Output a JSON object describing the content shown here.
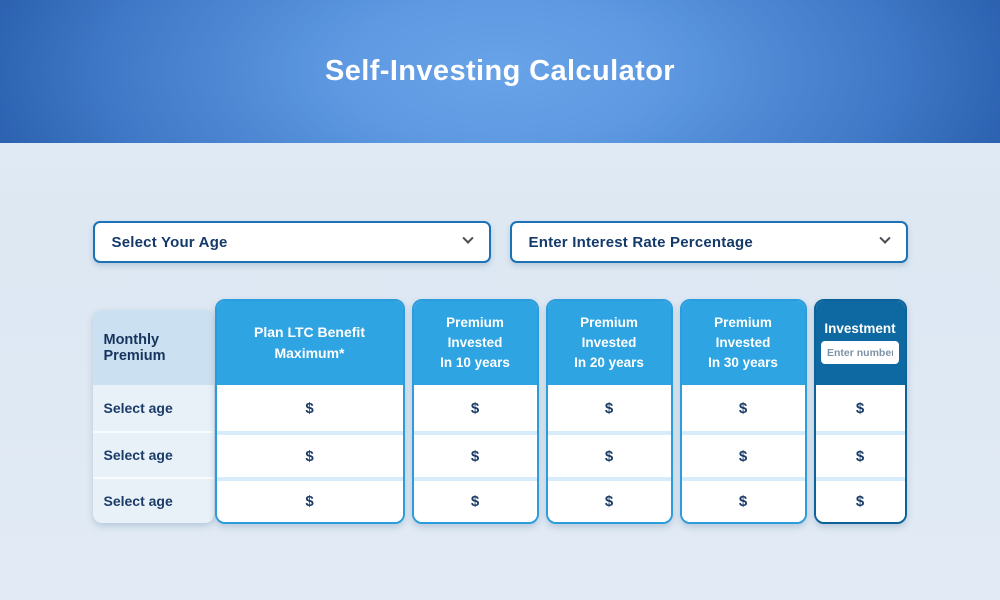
{
  "page": {
    "title": "Self-Investing Calculator"
  },
  "filters": {
    "age": {
      "label": "Select Your Age"
    },
    "rate": {
      "label": "Enter Interest Rate Percentage"
    }
  },
  "table": {
    "monthly_premium_header": "Monthly Premium",
    "columns": [
      {
        "id": "plan-ltc-benefit",
        "label": "Plan LTC Benefit Maximum*"
      },
      {
        "id": "invested-10",
        "line1": "Premium Invested",
        "line2": "In 10 years"
      },
      {
        "id": "invested-20",
        "line1": "Premium Invested",
        "line2": "In 20 years"
      },
      {
        "id": "invested-30",
        "line1": "Premium Invested",
        "line2": "In 30 years"
      },
      {
        "id": "investment",
        "label": "Investment",
        "input_placeholder": "Enter number",
        "input_value": ""
      }
    ],
    "rows": [
      {
        "label": "Select age",
        "values": [
          "$",
          "$",
          "$",
          "$",
          "$"
        ]
      },
      {
        "label": "Select age",
        "values": [
          "$",
          "$",
          "$",
          "$",
          "$"
        ]
      },
      {
        "label": "Select age",
        "values": [
          "$",
          "$",
          "$",
          "$",
          "$"
        ]
      }
    ]
  },
  "colors": {
    "hero_gradient_center": "#68a3e8",
    "hero_gradient_edge": "#164a94",
    "accent_blue": "#2ea4e2",
    "accent_blue_border": "#2b9ddd",
    "dark_blue": "#0e68a2",
    "light_header_bg": "#cbe0f0",
    "light_cell_bg": "#e9f1f8",
    "navy_text": "#16345e",
    "dropdown_border": "#1b72b4",
    "page_bg": "#dfe9f4"
  }
}
